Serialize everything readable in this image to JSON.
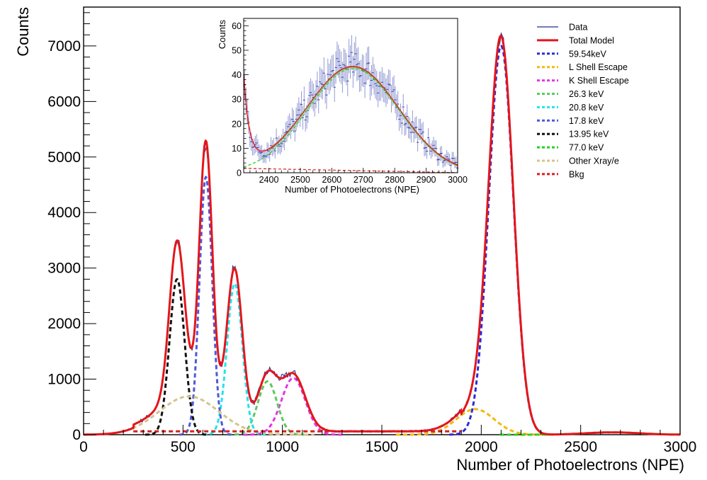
{
  "chart_data": [
    {
      "type": "line",
      "xlabel": "Number of Photoelectrons (NPE)",
      "ylabel": "Counts",
      "xlim": [
        0,
        3000
      ],
      "ylim": [
        0,
        7700
      ],
      "x_ticks": [
        0,
        500,
        1000,
        1500,
        2000,
        2500,
        3000
      ],
      "y_ticks": [
        0,
        1000,
        2000,
        3000,
        4000,
        5000,
        6000,
        7000
      ],
      "grid": false,
      "legend_position": "top-right",
      "legend": [
        {
          "label": "Data",
          "color": "#1f2f8f",
          "style": "solid-thin"
        },
        {
          "label": "Total Model",
          "color": "#e3161b",
          "style": "solid"
        },
        {
          "label": "59.54keV",
          "color": "#2b2bd6",
          "style": "dashed"
        },
        {
          "label": "L Shell Escape",
          "color": "#f4b90f",
          "style": "dashed"
        },
        {
          "label": "K Shell Escape",
          "color": "#e535e5",
          "style": "dashed"
        },
        {
          "label": "26.3 keV",
          "color": "#5fc85f",
          "style": "dashed"
        },
        {
          "label": "20.8 keV",
          "color": "#22e3ef",
          "style": "dashed"
        },
        {
          "label": "17.8 keV",
          "color": "#5058d8",
          "style": "dashed"
        },
        {
          "label": "13.95 keV",
          "color": "#111111",
          "style": "dashed"
        },
        {
          "label": "77.0 keV",
          "color": "#25d225",
          "style": "dashed"
        },
        {
          "label": "Other Xray/e",
          "color": "#d2c58c",
          "style": "dashed"
        },
        {
          "label": "Bkg",
          "color": "#d62020",
          "style": "dashed"
        }
      ],
      "components": [
        {
          "name": "59.54keV",
          "color": "#2b2bd6",
          "center": 2100,
          "sigma": 62,
          "amplitude": 7000
        },
        {
          "name": "L Shell Escape",
          "color": "#f4b90f",
          "center": 1970,
          "sigma": 95,
          "amplitude": 460
        },
        {
          "name": "K Shell Escape",
          "color": "#e535e5",
          "center": 1055,
          "sigma": 60,
          "amplitude": 1020
        },
        {
          "name": "26.3 keV",
          "color": "#5fc85f",
          "center": 925,
          "sigma": 48,
          "amplitude": 960
        },
        {
          "name": "20.8 keV",
          "color": "#22e3ef",
          "center": 760,
          "sigma": 38,
          "amplitude": 2720
        },
        {
          "name": "17.8 keV",
          "color": "#5058d8",
          "center": 615,
          "sigma": 32,
          "amplitude": 4640
        },
        {
          "name": "13.95 keV",
          "color": "#111111",
          "center": 470,
          "sigma": 38,
          "amplitude": 2800
        },
        {
          "name": "77.0 keV",
          "color": "#25d225",
          "center": 2660,
          "sigma": 135,
          "amplitude": 42
        },
        {
          "name": "Other Xray/e",
          "color": "#d2c58c",
          "center": 530,
          "sigma": 150,
          "amplitude": 690
        }
      ],
      "background": {
        "name": "Bkg",
        "color": "#d62020",
        "level": 60,
        "from": 250,
        "to": 1900
      }
    },
    {
      "type": "line",
      "xlabel": "Number of Photoelectrons (NPE)",
      "ylabel": "Counts",
      "xlim": [
        2320,
        3000
      ],
      "ylim": [
        0,
        63
      ],
      "x_ticks": [
        2400,
        2500,
        2600,
        2700,
        2800,
        2900,
        3000
      ],
      "y_ticks": [
        0,
        10,
        20,
        30,
        40,
        50,
        60
      ],
      "peak": {
        "center": 2668,
        "sigma": 145,
        "amplitude": 42.5
      },
      "bkg_level": 1.8,
      "low_tail": {
        "start": 36,
        "decay": 18
      }
    }
  ]
}
